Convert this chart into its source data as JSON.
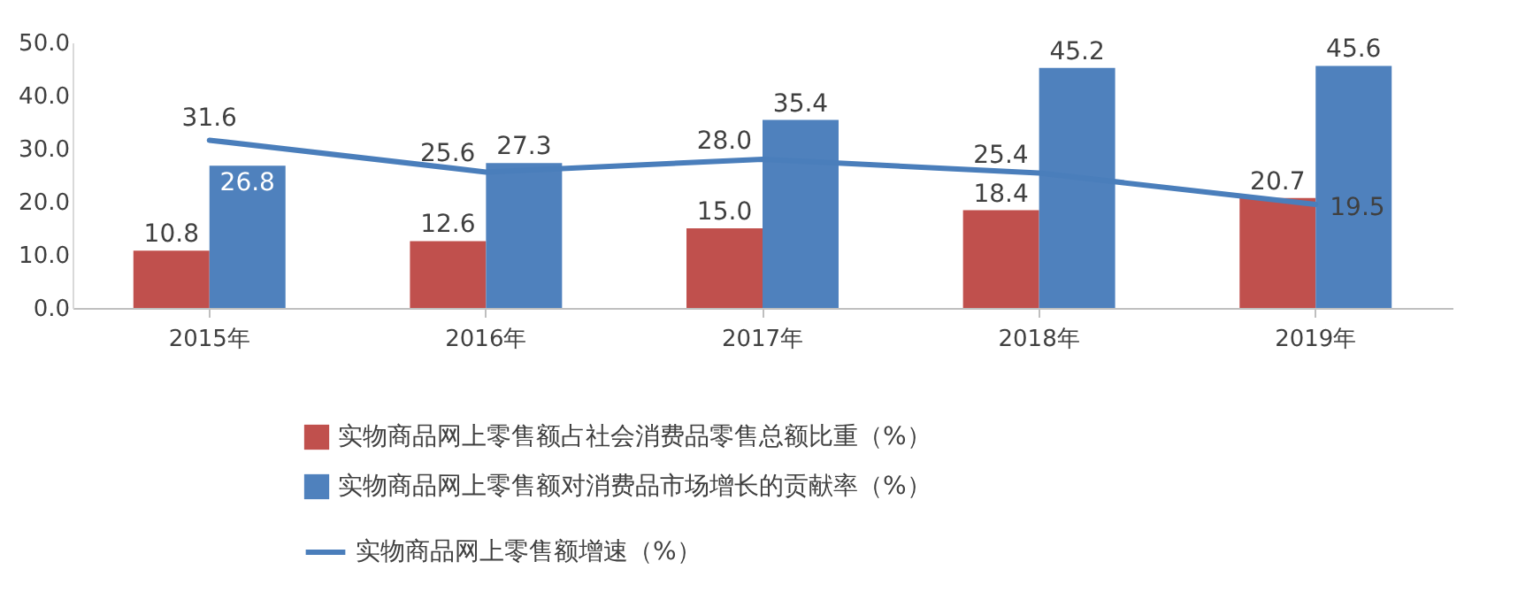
{
  "chart_data": {
    "type": "bar",
    "categories": [
      "2015年",
      "2016年",
      "2017年",
      "2018年",
      "2019年"
    ],
    "series": [
      {
        "name": "实物商品网上零售额占社会消费品零售总额比重（%）",
        "color": "#c0504d",
        "values": [
          10.8,
          12.6,
          15.0,
          18.4,
          20.7
        ],
        "value_labels": [
          "10.8",
          "12.6",
          "15.0",
          "18.4",
          "20.7"
        ]
      },
      {
        "name": "实物商品网上零售额对消费品市场增长的贡献率（%）",
        "color": "#4f81bd",
        "values": [
          26.8,
          27.3,
          35.4,
          45.2,
          45.6
        ],
        "value_labels": [
          "26.8",
          "27.3",
          "35.4",
          "45.2",
          "45.6"
        ]
      },
      {
        "name": "实物商品网上零售额增速（%）",
        "type": "line",
        "color": "#4a7ebb",
        "values": [
          31.6,
          25.6,
          28.0,
          25.4,
          19.5
        ],
        "value_labels": [
          "31.6",
          "25.6",
          "28.0",
          "25.4",
          "19.5"
        ]
      }
    ],
    "ylim": [
      0,
      50
    ],
    "yticks": [
      {
        "value": 0,
        "label": "0.0"
      },
      {
        "value": 10,
        "label": "10.0"
      },
      {
        "value": 20,
        "label": "20.0"
      },
      {
        "value": 30,
        "label": "30.0"
      },
      {
        "value": 40,
        "label": "40.0"
      },
      {
        "value": 50,
        "label": "50.0"
      }
    ],
    "grid": false,
    "legend": "bottom",
    "marker": "none",
    "line_style": "solid"
  }
}
